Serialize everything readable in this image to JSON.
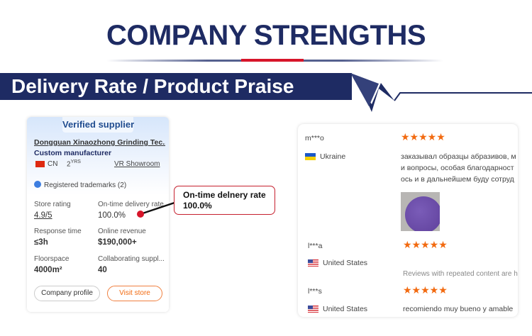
{
  "header": {
    "title": "COMPANY STRENGTHS",
    "section": "Delivery Rate / Product Praise"
  },
  "colors": {
    "navy": "#1e2b63",
    "red": "#d7152a",
    "orange": "#f26a10"
  },
  "supplier": {
    "badge": "Verified supplier",
    "name": "Dongguan Xinaozhong Grinding Tec...",
    "type": "Custom manufacturer",
    "country": "CN",
    "years": "2",
    "years_unit": "YRS",
    "vr": "VR Showroom",
    "trademarks": "Registered trademarks (2)",
    "stats": [
      {
        "label": "Store rating",
        "value": "4.9/5"
      },
      {
        "label": "On-time delivery rate",
        "value": "100.0%"
      },
      {
        "label": "Response time",
        "value": "≤3h"
      },
      {
        "label": "Online revenue",
        "value": "$190,000+"
      },
      {
        "label": "Floorspace",
        "value": "4000m²"
      },
      {
        "label": "Collaborating suppl...",
        "value": "40"
      }
    ],
    "buttons": {
      "profile": "Company profile",
      "visit": "Visit store"
    }
  },
  "callout": {
    "line1": "On-time delnery rate",
    "line2": "100.0%"
  },
  "reviews": [
    {
      "user": "m***o",
      "country": "Ukraine",
      "rating": 5,
      "text": [
        "заказывал образцы абразивов, м",
        "и вопросы, особая благодарност",
        "ось и в дальнейшем буду сотруд"
      ]
    },
    {
      "user": "l***a",
      "country": "United States",
      "rating": 5,
      "text": [
        "Reviews with repeated content are hid"
      ]
    },
    {
      "user": "l***s",
      "country": "United States",
      "rating": 5,
      "text": [
        "recomiendo muy bueno y amable"
      ]
    }
  ]
}
